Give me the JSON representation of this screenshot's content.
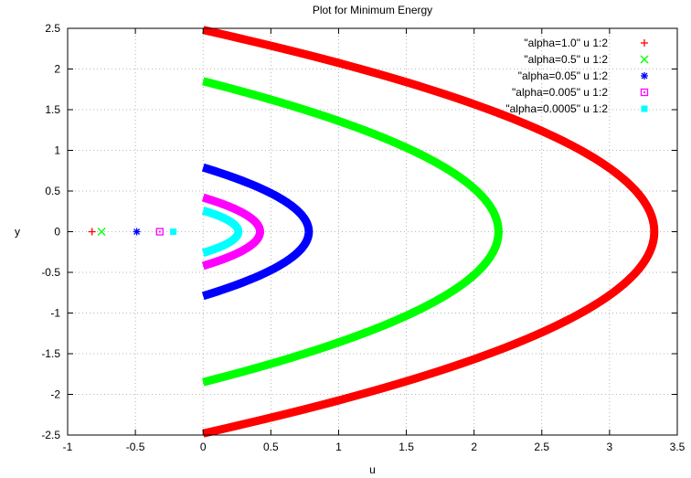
{
  "chart_data": {
    "type": "scatter",
    "title": "Plot for Minimum Energy",
    "xlabel": "u",
    "ylabel": "y",
    "xlim": [
      -1,
      3.5
    ],
    "ylim": [
      -2.5,
      2.5
    ],
    "xticks": [
      "-1",
      "-0.5",
      "0",
      "0.5",
      "1",
      "1.5",
      "2",
      "2.5",
      "3",
      "3.5"
    ],
    "yticks": [
      "2.5",
      "2",
      "1.5",
      "1",
      "0.5",
      "0",
      "-0.5",
      "-1",
      "-1.5",
      "-2",
      "-2.5"
    ],
    "grid": true,
    "legend_position": "top-right",
    "series": [
      {
        "name": "\"alpha=1.0\" u 1:2",
        "color": "#ff0000",
        "marker": "plus",
        "isolated_point": [
          -0.82,
          0
        ],
        "u_max": 3.33,
        "y_max": 2.48
      },
      {
        "name": "\"alpha=0.5\" u 1:2",
        "color": "#00ff00",
        "marker": "cross",
        "isolated_point": [
          -0.75,
          0
        ],
        "u_max": 2.18,
        "y_max": 1.85
      },
      {
        "name": "\"alpha=0.05\" u 1:2",
        "color": "#0000ff",
        "marker": "asterisk",
        "isolated_point": [
          -0.49,
          0
        ],
        "u_max": 0.78,
        "y_max": 0.79
      },
      {
        "name": "\"alpha=0.005\" u 1:2",
        "color": "#ff00ff",
        "marker": "open-square",
        "isolated_point": [
          -0.32,
          0
        ],
        "u_max": 0.42,
        "y_max": 0.42
      },
      {
        "name": "\"alpha=0.0005\" u 1:2",
        "color": "#00ffff",
        "marker": "filled-square",
        "isolated_point": [
          -0.22,
          0
        ],
        "u_max": 0.26,
        "y_max": 0.26
      }
    ]
  }
}
